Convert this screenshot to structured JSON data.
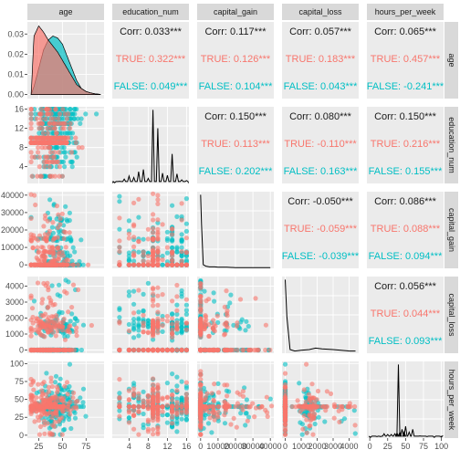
{
  "colors": {
    "true": "#F8766D",
    "false": "#00BFC4",
    "panel_bg": "#EBEBEB",
    "strip_bg": "#D9D9D9",
    "grid": "#FFFFFF",
    "text": "#1A1A1A",
    "corr_total": "#1A1A1A"
  },
  "chart_data": {
    "type": "scatter",
    "variables": [
      "age",
      "education_num",
      "capital_gain",
      "capital_loss",
      "hours_per_week"
    ],
    "groups": [
      "TRUE",
      "FALSE"
    ],
    "axes": {
      "age": {
        "range": [
          13,
          94
        ],
        "ticks": [
          25,
          50,
          75
        ],
        "labels": [
          "25",
          "50",
          "75"
        ]
      },
      "education_num": {
        "range": [
          0.5,
          16.5
        ],
        "ticks": [
          4,
          8,
          12,
          16
        ],
        "labels": [
          "4",
          "8",
          "12",
          "16"
        ]
      },
      "capital_gain": {
        "range": [
          -2000,
          42000
        ],
        "ticks": [
          0,
          10000,
          20000,
          30000,
          40000
        ],
        "labels": [
          "0",
          "10000",
          "20000",
          "30000",
          "40000"
        ]
      },
      "capital_loss": {
        "range": [
          -200,
          4600
        ],
        "ticks": [
          0,
          1000,
          2000,
          3000,
          4000
        ],
        "labels": [
          "0",
          "1000",
          "2000",
          "3000",
          "4000"
        ]
      },
      "hours_per_week": {
        "range": [
          -4,
          103
        ],
        "ticks": [
          0,
          25,
          50,
          75,
          100
        ],
        "labels": [
          "0",
          "25",
          "50",
          "75",
          "100"
        ]
      }
    },
    "age_density_axis": {
      "range": [
        -0.002,
        0.036
      ],
      "ticks": [
        0.0,
        0.01,
        0.02,
        0.03
      ],
      "labels": [
        "0.00",
        "0.01",
        "0.02",
        "0.03"
      ]
    },
    "density_age": {
      "x": [
        17,
        20,
        25,
        30,
        35,
        40,
        45,
        50,
        55,
        60,
        65,
        70,
        75,
        80,
        85,
        90
      ],
      "TRUE": [
        0.0,
        0.029,
        0.034,
        0.031,
        0.027,
        0.024,
        0.021,
        0.017,
        0.013,
        0.009,
        0.005,
        0.003,
        0.0015,
        0.0008,
        0.0003,
        0.0001
      ],
      "FALSE": [
        0.0,
        0.004,
        0.013,
        0.022,
        0.027,
        0.029,
        0.028,
        0.025,
        0.019,
        0.013,
        0.007,
        0.003,
        0.0015,
        0.0008,
        0.0003,
        0.0001
      ]
    },
    "density_education_num": {
      "x": [
        1,
        2,
        3,
        4,
        5,
        6,
        7,
        8,
        9,
        10,
        11,
        12,
        13,
        14,
        15,
        16
      ],
      "total": [
        0.01,
        0.03,
        0.06,
        0.1,
        0.08,
        0.16,
        0.19,
        0.07,
        1.0,
        0.75,
        0.14,
        0.11,
        0.4,
        0.13,
        0.05,
        0.04
      ]
    },
    "density_capital_gain": {
      "x": [
        0,
        500,
        1500,
        3000,
        5000,
        8000,
        10000,
        15000,
        20000,
        30000,
        40000
      ],
      "total": [
        1.0,
        0.6,
        0.05,
        0.03,
        0.02,
        0.02,
        0.015,
        0.015,
        0.01,
        0.01,
        0.01
      ]
    },
    "density_capital_loss": {
      "x": [
        0,
        100,
        300,
        600,
        1000,
        1500,
        1900,
        2300,
        3000,
        4000,
        4400
      ],
      "total": [
        1.0,
        0.5,
        0.05,
        0.03,
        0.04,
        0.05,
        0.07,
        0.06,
        0.05,
        0.03,
        0.03
      ]
    },
    "density_hours_per_week": {
      "x": [
        1,
        10,
        15,
        20,
        25,
        30,
        35,
        38,
        40,
        42,
        45,
        48,
        50,
        55,
        60,
        70,
        80,
        90,
        99
      ],
      "total": [
        0.01,
        0.02,
        0.02,
        0.06,
        0.05,
        0.05,
        0.06,
        0.07,
        1.0,
        0.08,
        0.12,
        0.08,
        0.16,
        0.08,
        0.12,
        0.03,
        0.02,
        0.01,
        0.02
      ]
    },
    "correlations": [
      {
        "row": "age",
        "col": "education_num",
        "total": "Corr: 0.033***",
        "true": "TRUE: 0.322***",
        "false": "FALSE: 0.049***"
      },
      {
        "row": "age",
        "col": "capital_gain",
        "total": "Corr: 0.117***",
        "true": "TRUE: 0.126***",
        "false": "FALSE: 0.104***"
      },
      {
        "row": "age",
        "col": "capital_loss",
        "total": "Corr: 0.057***",
        "true": "TRUE: 0.183***",
        "false": "FALSE: 0.043***"
      },
      {
        "row": "age",
        "col": "hours_per_week",
        "total": "Corr: 0.065***",
        "true": "TRUE: 0.457***",
        "false": "FALSE: -0.241***"
      },
      {
        "row": "education_num",
        "col": "capital_gain",
        "total": "Corr: 0.150***",
        "true": "TRUE: 0.113***",
        "false": "FALSE: 0.202***"
      },
      {
        "row": "education_num",
        "col": "capital_loss",
        "total": "Corr: 0.080***",
        "true": "TRUE: -0.110***",
        "false": "FALSE: 0.163***"
      },
      {
        "row": "education_num",
        "col": "hours_per_week",
        "total": "Corr: 0.150***",
        "true": "TRUE: 0.216***",
        "false": "FALSE: 0.155***"
      },
      {
        "row": "capital_gain",
        "col": "capital_loss",
        "total": "Corr: -0.050***",
        "true": "TRUE: -0.059***",
        "false": "FALSE: -0.039***"
      },
      {
        "row": "capital_gain",
        "col": "hours_per_week",
        "total": "Corr: 0.086***",
        "true": "TRUE: 0.088***",
        "false": "FALSE: 0.094***"
      },
      {
        "row": "capital_loss",
        "col": "hours_per_week",
        "total": "Corr: 0.056***",
        "true": "TRUE: 0.044***",
        "false": "FALSE: 0.093***"
      }
    ],
    "grid": true,
    "legend": "none"
  }
}
